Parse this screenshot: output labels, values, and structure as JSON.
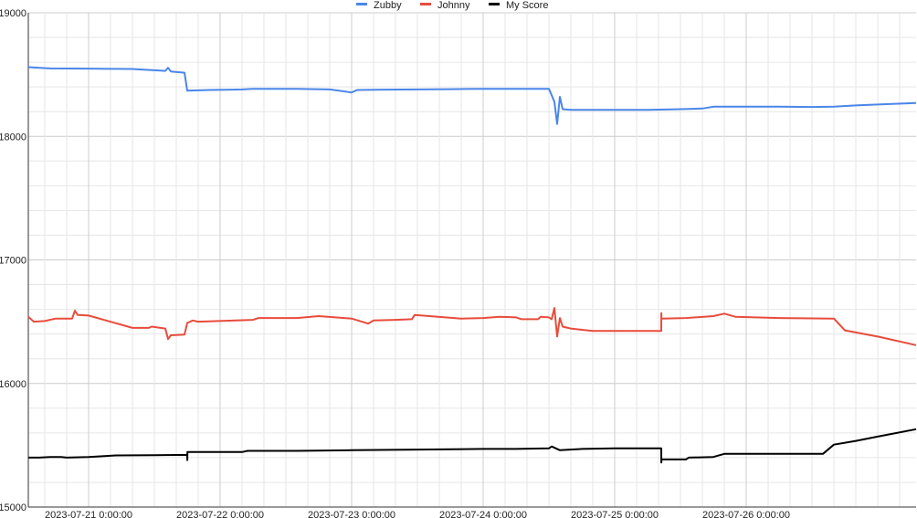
{
  "chart_data": {
    "type": "line",
    "title": "",
    "xlabel": "",
    "ylabel": "",
    "grid": true,
    "legend_position": "top",
    "x_start": "2023-07-20 13:00",
    "x_end": "2023-07-27 07:00",
    "ylim": [
      15000,
      19000
    ],
    "y_ticks": [
      {
        "value": 15000,
        "label": "15000"
      },
      {
        "value": 16000,
        "label": "16000"
      },
      {
        "value": 17000,
        "label": "17000"
      },
      {
        "value": 18000,
        "label": "18000"
      },
      {
        "value": 19000,
        "label": "19000"
      }
    ],
    "x_ticks": [
      {
        "value": "2023-07-21 00:00",
        "label": "2023-07-21 0:00:00"
      },
      {
        "value": "2023-07-22 00:00",
        "label": "2023-07-22 0:00:00"
      },
      {
        "value": "2023-07-23 00:00",
        "label": "2023-07-23 0:00:00"
      },
      {
        "value": "2023-07-24 00:00",
        "label": "2023-07-24 0:00:00"
      },
      {
        "value": "2023-07-25 00:00",
        "label": "2023-07-25 0:00:00"
      },
      {
        "value": "2023-07-26 00:00",
        "label": "2023-07-26 0:00:00"
      }
    ],
    "series": [
      {
        "name": "Zubby",
        "color": "#4a86e8",
        "points": [
          [
            "2023-07-20 13:00",
            18560
          ],
          [
            "2023-07-20 15:00",
            18555
          ],
          [
            "2023-07-20 17:00",
            18550
          ],
          [
            "2023-07-21 00:00",
            18548
          ],
          [
            "2023-07-21 04:00",
            18546
          ],
          [
            "2023-07-21 08:00",
            18545
          ],
          [
            "2023-07-21 10:00",
            18540
          ],
          [
            "2023-07-21 12:00",
            18535
          ],
          [
            "2023-07-21 14:00",
            18530
          ],
          [
            "2023-07-21 14:30",
            18555
          ],
          [
            "2023-07-21 15:00",
            18525
          ],
          [
            "2023-07-21 17:30",
            18515
          ],
          [
            "2023-07-21 18:00",
            18370
          ],
          [
            "2023-07-21 22:00",
            18375
          ],
          [
            "2023-07-22 04:00",
            18380
          ],
          [
            "2023-07-22 06:00",
            18385
          ],
          [
            "2023-07-22 14:00",
            18385
          ],
          [
            "2023-07-22 20:00",
            18380
          ],
          [
            "2023-07-23 00:00",
            18355
          ],
          [
            "2023-07-23 01:00",
            18375
          ],
          [
            "2023-07-23 06:00",
            18378
          ],
          [
            "2023-07-23 12:00",
            18380
          ],
          [
            "2023-07-23 18:00",
            18382
          ],
          [
            "2023-07-24 00:00",
            18385
          ],
          [
            "2023-07-24 06:00",
            18385
          ],
          [
            "2023-07-24 12:00",
            18385
          ],
          [
            "2023-07-24 12:20",
            18350
          ],
          [
            "2023-07-24 13:00",
            18280
          ],
          [
            "2023-07-24 13:30",
            18100
          ],
          [
            "2023-07-24 14:00",
            18320
          ],
          [
            "2023-07-24 14:30",
            18220
          ],
          [
            "2023-07-24 16:00",
            18215
          ],
          [
            "2023-07-25 00:00",
            18215
          ],
          [
            "2023-07-25 06:00",
            18215
          ],
          [
            "2023-07-25 12:00",
            18220
          ],
          [
            "2023-07-25 16:00",
            18225
          ],
          [
            "2023-07-25 18:00",
            18240
          ],
          [
            "2023-07-26 00:00",
            18240
          ],
          [
            "2023-07-26 06:00",
            18240
          ],
          [
            "2023-07-26 12:00",
            18238
          ],
          [
            "2023-07-26 16:00",
            18240
          ],
          [
            "2023-07-26 20:00",
            18250
          ],
          [
            "2023-07-27 00:00",
            18258
          ],
          [
            "2023-07-27 07:00",
            18270
          ]
        ]
      },
      {
        "name": "Johnny",
        "color": "#e74c3c",
        "points": [
          [
            "2023-07-20 13:00",
            16540
          ],
          [
            "2023-07-20 14:00",
            16500
          ],
          [
            "2023-07-20 16:00",
            16505
          ],
          [
            "2023-07-20 18:00",
            16525
          ],
          [
            "2023-07-20 21:00",
            16525
          ],
          [
            "2023-07-20 21:30",
            16590
          ],
          [
            "2023-07-20 22:00",
            16555
          ],
          [
            "2023-07-21 00:00",
            16550
          ],
          [
            "2023-07-21 08:00",
            16450
          ],
          [
            "2023-07-21 11:00",
            16450
          ],
          [
            "2023-07-21 11:30",
            16460
          ],
          [
            "2023-07-21 14:00",
            16445
          ],
          [
            "2023-07-21 14:30",
            16360
          ],
          [
            "2023-07-21 15:00",
            16390
          ],
          [
            "2023-07-21 17:30",
            16395
          ],
          [
            "2023-07-21 18:00",
            16490
          ],
          [
            "2023-07-21 19:00",
            16510
          ],
          [
            "2023-07-21 20:00",
            16500
          ],
          [
            "2023-07-22 06:00",
            16515
          ],
          [
            "2023-07-22 07:00",
            16530
          ],
          [
            "2023-07-22 14:00",
            16530
          ],
          [
            "2023-07-22 18:00",
            16545
          ],
          [
            "2023-07-23 00:00",
            16525
          ],
          [
            "2023-07-23 03:00",
            16485
          ],
          [
            "2023-07-23 04:00",
            16510
          ],
          [
            "2023-07-23 08:00",
            16515
          ],
          [
            "2023-07-23 11:00",
            16520
          ],
          [
            "2023-07-23 11:30",
            16555
          ],
          [
            "2023-07-23 20:00",
            16525
          ],
          [
            "2023-07-24 00:00",
            16530
          ],
          [
            "2023-07-24 03:00",
            16540
          ],
          [
            "2023-07-24 06:00",
            16535
          ],
          [
            "2023-07-24 07:00",
            16520
          ],
          [
            "2023-07-24 10:00",
            16520
          ],
          [
            "2023-07-24 10:30",
            16540
          ],
          [
            "2023-07-24 12:00",
            16535
          ],
          [
            "2023-07-24 12:30",
            16520
          ],
          [
            "2023-07-24 13:00",
            16610
          ],
          [
            "2023-07-24 13:30",
            16380
          ],
          [
            "2023-07-24 14:00",
            16530
          ],
          [
            "2023-07-24 14:30",
            16460
          ],
          [
            "2023-07-24 16:00",
            16445
          ],
          [
            "2023-07-24 20:00",
            16425
          ],
          [
            "2023-07-25 06:00",
            16425
          ],
          [
            "2023-07-25 08:30",
            16425
          ],
          [
            "2023-07-25 08:31",
            16570
          ],
          [
            "2023-07-25 08:32",
            16525
          ],
          [
            "2023-07-25 13:00",
            16530
          ],
          [
            "2023-07-25 18:00",
            16545
          ],
          [
            "2023-07-25 20:00",
            16565
          ],
          [
            "2023-07-25 22:00",
            16540
          ],
          [
            "2023-07-26 06:00",
            16530
          ],
          [
            "2023-07-26 16:00",
            16525
          ],
          [
            "2023-07-26 18:00",
            16430
          ],
          [
            "2023-07-27 00:00",
            16380
          ],
          [
            "2023-07-27 07:00",
            16310
          ]
        ]
      },
      {
        "name": "My Score",
        "color": "#000000",
        "points": [
          [
            "2023-07-20 13:00",
            15400
          ],
          [
            "2023-07-20 15:00",
            15400
          ],
          [
            "2023-07-20 17:00",
            15405
          ],
          [
            "2023-07-20 19:00",
            15405
          ],
          [
            "2023-07-20 20:00",
            15400
          ],
          [
            "2023-07-21 00:00",
            15405
          ],
          [
            "2023-07-21 05:00",
            15418
          ],
          [
            "2023-07-21 12:00",
            15420
          ],
          [
            "2023-07-21 18:00",
            15422
          ],
          [
            "2023-07-21 18:01",
            15380
          ],
          [
            "2023-07-21 18:02",
            15445
          ],
          [
            "2023-07-22 04:00",
            15445
          ],
          [
            "2023-07-22 05:00",
            15455
          ],
          [
            "2023-07-22 14:00",
            15455
          ],
          [
            "2023-07-23 00:00",
            15460
          ],
          [
            "2023-07-23 12:00",
            15465
          ],
          [
            "2023-07-24 00:00",
            15470
          ],
          [
            "2023-07-24 06:00",
            15470
          ],
          [
            "2023-07-24 12:00",
            15475
          ],
          [
            "2023-07-24 12:30",
            15490
          ],
          [
            "2023-07-24 14:00",
            15460
          ],
          [
            "2023-07-24 18:00",
            15470
          ],
          [
            "2023-07-25 00:00",
            15475
          ],
          [
            "2023-07-25 08:30",
            15475
          ],
          [
            "2023-07-25 08:31",
            15360
          ],
          [
            "2023-07-25 08:32",
            15385
          ],
          [
            "2023-07-25 13:00",
            15385
          ],
          [
            "2023-07-25 13:30",
            15400
          ],
          [
            "2023-07-25 18:00",
            15405
          ],
          [
            "2023-07-25 20:00",
            15430
          ],
          [
            "2023-07-26 06:00",
            15430
          ],
          [
            "2023-07-26 14:00",
            15430
          ],
          [
            "2023-07-26 16:00",
            15505
          ],
          [
            "2023-07-26 20:00",
            15535
          ],
          [
            "2023-07-27 00:00",
            15570
          ],
          [
            "2023-07-27 07:00",
            15630
          ]
        ]
      }
    ]
  }
}
